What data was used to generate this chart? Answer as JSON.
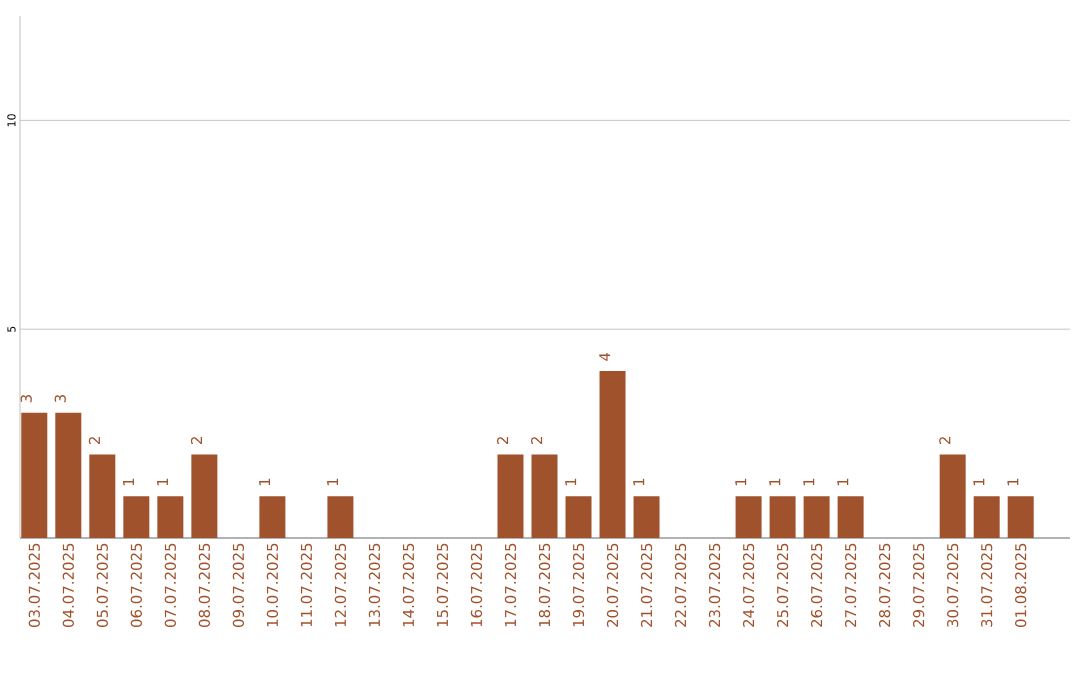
{
  "chart_data": {
    "type": "bar",
    "categories": [
      "03.07.2025",
      "04.07.2025",
      "05.07.2025",
      "06.07.2025",
      "07.07.2025",
      "08.07.2025",
      "09.07.2025",
      "10.07.2025",
      "11.07.2025",
      "12.07.2025",
      "13.07.2025",
      "14.07.2025",
      "15.07.2025",
      "16.07.2025",
      "17.07.2025",
      "18.07.2025",
      "19.07.2025",
      "20.07.2025",
      "21.07.2025",
      "22.07.2025",
      "23.07.2025",
      "24.07.2025",
      "25.07.2025",
      "26.07.2025",
      "27.07.2025",
      "28.07.2025",
      "29.07.2025",
      "30.07.2025",
      "31.07.2025",
      "01.08.2025"
    ],
    "values": [
      3,
      3,
      2,
      1,
      1,
      2,
      0,
      1,
      0,
      1,
      0,
      0,
      0,
      0,
      2,
      2,
      1,
      4,
      1,
      0,
      0,
      1,
      1,
      1,
      1,
      0,
      0,
      2,
      1,
      1
    ],
    "value_labels": [
      "3",
      "3",
      "2",
      "1",
      "1",
      "2",
      null,
      "1",
      null,
      "1",
      null,
      null,
      null,
      null,
      "2",
      "2",
      "1",
      "4",
      "1",
      null,
      null,
      "1",
      "1",
      "1",
      "1",
      null,
      null,
      "2",
      "1",
      "1"
    ],
    "color": "#a0522d",
    "ylim": [
      0,
      12.5
    ],
    "yticks": [
      5,
      10
    ],
    "grid": "y"
  }
}
